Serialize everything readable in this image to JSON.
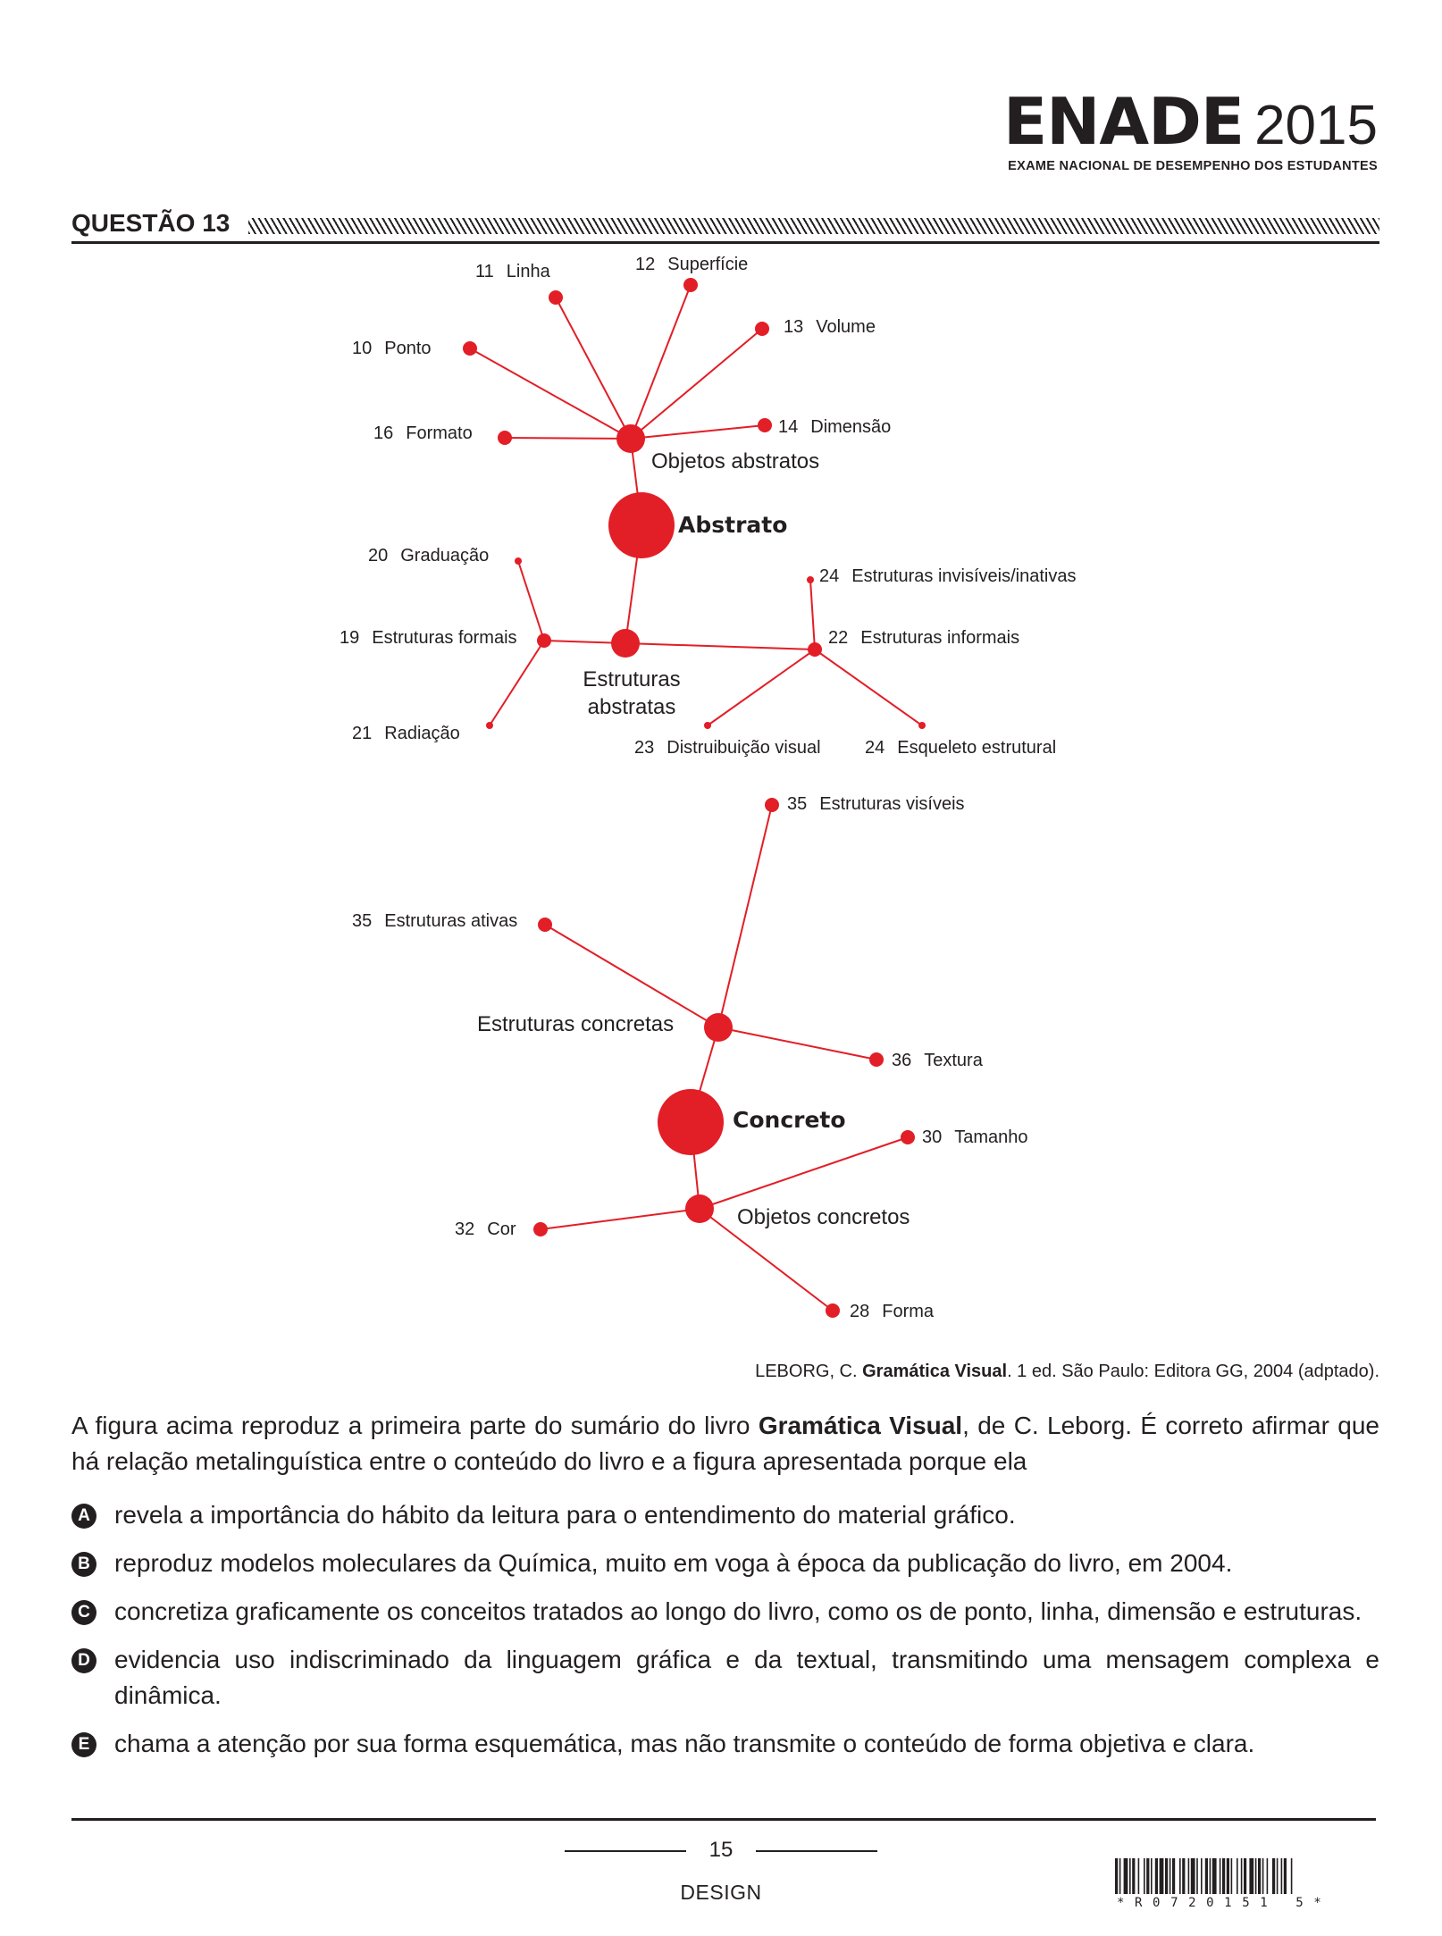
{
  "header": {
    "logo_name": "ENADE",
    "logo_year": "2015",
    "logo_subtitle": "EXAME NACIONAL DE DESEMPENHO DOS ESTUDANTES",
    "question_title": "QUESTÃO 13"
  },
  "diagram": {
    "accent_color": "#e21e26",
    "nodes": [
      {
        "id": "n11",
        "num": "11",
        "label": "Linha"
      },
      {
        "id": "n12",
        "num": "12",
        "label": "Superfície"
      },
      {
        "id": "n13",
        "num": "13",
        "label": "Volume"
      },
      {
        "id": "n10",
        "num": "10",
        "label": "Ponto"
      },
      {
        "id": "n16",
        "num": "16",
        "label": "Formato"
      },
      {
        "id": "n14",
        "num": "14",
        "label": "Dimensão"
      },
      {
        "id": "objabs",
        "label": "Objetos abstratos"
      },
      {
        "id": "abstrato",
        "label": "Abstrato"
      },
      {
        "id": "n20",
        "num": "20",
        "label": "Graduação"
      },
      {
        "id": "n24a",
        "num": "24",
        "label": "Estruturas invisíveis/inativas"
      },
      {
        "id": "n19",
        "num": "19",
        "label": "Estruturas formais"
      },
      {
        "id": "estabs",
        "label_line1": "Estruturas",
        "label_line2": "abstratas"
      },
      {
        "id": "n22",
        "num": "22",
        "label": "Estruturas informais"
      },
      {
        "id": "n21",
        "num": "21",
        "label": "Radiação"
      },
      {
        "id": "n23",
        "num": "23",
        "label": "Distruibuição visual"
      },
      {
        "id": "n24b",
        "num": "24",
        "label": "Esqueleto estrutural"
      },
      {
        "id": "n35a",
        "num": "35",
        "label": "Estruturas visíveis"
      },
      {
        "id": "n35b",
        "num": "35",
        "label": "Estruturas ativas"
      },
      {
        "id": "estconc",
        "label": "Estruturas concretas"
      },
      {
        "id": "n36",
        "num": "36",
        "label": "Textura"
      },
      {
        "id": "concreto",
        "label": "Concreto"
      },
      {
        "id": "n30",
        "num": "30",
        "label": "Tamanho"
      },
      {
        "id": "n32",
        "num": "32",
        "label": "Cor"
      },
      {
        "id": "objconc",
        "label": "Objetos concretos"
      },
      {
        "id": "n28",
        "num": "28",
        "label": "Forma"
      }
    ]
  },
  "citation": {
    "author": "LEBORG, C. ",
    "title": "Gramática Visual",
    "rest": ". 1 ed. São Paulo: Editora GG, 2004 (adptado)."
  },
  "question": {
    "stem_part1": "A figura acima reproduz a primeira parte do sumário do livro ",
    "stem_bold": "Gramática Visual",
    "stem_part2": ", de C. Leborg. É correto afirmar que há relação metalinguística entre o conteúdo do livro e a figura apresentada porque ela",
    "options": [
      {
        "letter": "A",
        "text": "revela a importância do hábito da leitura para o entendimento do material gráfico."
      },
      {
        "letter": "B",
        "text": "reproduz modelos moleculares da Química, muito em voga à época da publicação do livro, em 2004."
      },
      {
        "letter": "C",
        "text": "concretiza graficamente os conceitos tratados ao longo do livro, como os de ponto, linha, dimensão e estruturas."
      },
      {
        "letter": "D",
        "text": "evidencia uso indiscriminado da linguagem gráfica e da textual, transmitindo uma mensagem complexa e dinâmica."
      },
      {
        "letter": "E",
        "text": "chama a atenção por sua forma esquemática, mas não transmite o conteúdo de forma objetiva e clara."
      }
    ]
  },
  "footer": {
    "page_number": "15",
    "course": "DESIGN",
    "barcode_text": "*R0720151 5*"
  }
}
